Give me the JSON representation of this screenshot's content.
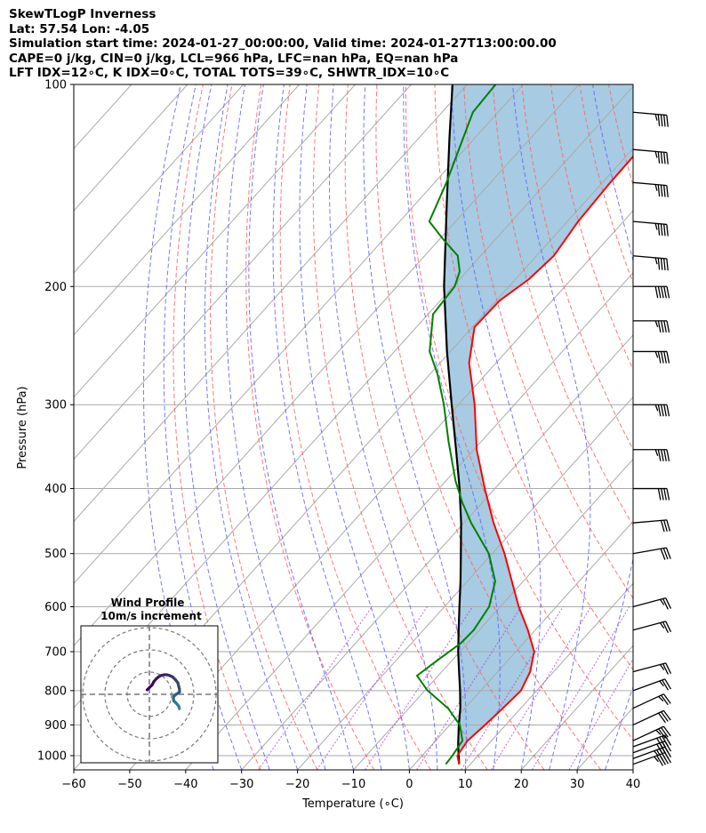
{
  "header": {
    "line1": "SkewTLogP Inverness",
    "line2": "Lat: 57.54   Lon: -4.05",
    "line3": "Simulation start time: 2024-01-27_00:00:00, Valid time: 2024-01-27T13:00:00.00",
    "line4": "CAPE=0 j/kg, CIN=0 j/kg, LCL=966 hPa, LFC=nan hPa, EQ=nan hPa",
    "line5": "LFT IDX=12∘C, K IDX=0∘C, TOTAL TOTS=39∘C, SHWTR_IDX=10∘C"
  },
  "colors": {
    "temperature": "#ff0000",
    "dewpoint": "#008000",
    "parcel": "#000000",
    "shading": "#a2c8e0",
    "dry_adiabat": "#ff6666",
    "moist_adiabat": "#6666ff",
    "mixing_ratio": "#aa44cc",
    "isotherm": "#aaaaaa"
  },
  "chart_data": {
    "type": "line",
    "skew_t": true,
    "xlabel": "Temperature (∘C)",
    "ylabel": "Pressure (hPa)",
    "xlim": [
      -60,
      40
    ],
    "ylim": [
      1050,
      100
    ],
    "y_scale": "log",
    "x_ticks": [
      "−60",
      "−50",
      "−40",
      "−30",
      "−20",
      "−10",
      "0",
      "10",
      "20",
      "30",
      "40"
    ],
    "y_ticks": [
      "1000",
      "900",
      "800",
      "700",
      "600",
      "500",
      "400",
      "300",
      "200",
      "100"
    ],
    "grid": true,
    "temperature_profile": [
      {
        "p": 1030,
        "t": 8
      },
      {
        "p": 1000,
        "t": 6.3
      },
      {
        "p": 950,
        "t": 5.7
      },
      {
        "p": 900,
        "t": 6.3
      },
      {
        "p": 850,
        "t": 6.8
      },
      {
        "p": 800,
        "t": 7.2
      },
      {
        "p": 750,
        "t": 5.8
      },
      {
        "p": 700,
        "t": 3.3
      },
      {
        "p": 650,
        "t": -1.3
      },
      {
        "p": 600,
        "t": -6.7
      },
      {
        "p": 550,
        "t": -12.0
      },
      {
        "p": 500,
        "t": -17.8
      },
      {
        "p": 450,
        "t": -24.7
      },
      {
        "p": 400,
        "t": -31.8
      },
      {
        "p": 350,
        "t": -39.5
      },
      {
        "p": 300,
        "t": -47.1
      },
      {
        "p": 260,
        "t": -54.8
      },
      {
        "p": 230,
        "t": -59.6
      },
      {
        "p": 210,
        "t": -59.4
      },
      {
        "p": 195,
        "t": -57.6
      },
      {
        "p": 180,
        "t": -56.9
      },
      {
        "p": 160,
        "t": -58.1
      },
      {
        "p": 140,
        "t": -58.6
      },
      {
        "p": 120,
        "t": -58.8
      },
      {
        "p": 100,
        "t": -60.4
      }
    ],
    "dewpoint_profile": [
      {
        "p": 1030,
        "t": 5.6
      },
      {
        "p": 1000,
        "t": 5.4
      },
      {
        "p": 950,
        "t": 4.8
      },
      {
        "p": 900,
        "t": 1.8
      },
      {
        "p": 850,
        "t": -3.0
      },
      {
        "p": 800,
        "t": -9.5
      },
      {
        "p": 760,
        "t": -13.8
      },
      {
        "p": 720,
        "t": -12.6
      },
      {
        "p": 680,
        "t": -11.2
      },
      {
        "p": 650,
        "t": -11.0
      },
      {
        "p": 600,
        "t": -12.0
      },
      {
        "p": 550,
        "t": -15.0
      },
      {
        "p": 500,
        "t": -20.6
      },
      {
        "p": 450,
        "t": -28.7
      },
      {
        "p": 420,
        "t": -33.5
      },
      {
        "p": 390,
        "t": -38.2
      },
      {
        "p": 340,
        "t": -45.9
      },
      {
        "p": 300,
        "t": -52.6
      },
      {
        "p": 270,
        "t": -58.7
      },
      {
        "p": 250,
        "t": -63.7
      },
      {
        "p": 220,
        "t": -69.1
      },
      {
        "p": 200,
        "t": -69.7
      },
      {
        "p": 190,
        "t": -71.2
      },
      {
        "p": 180,
        "t": -74.1
      },
      {
        "p": 170,
        "t": -79.4
      },
      {
        "p": 160,
        "t": -84.7
      },
      {
        "p": 140,
        "t": -87.9
      },
      {
        "p": 110,
        "t": -94.5
      },
      {
        "p": 100,
        "t": -94.9
      }
    ],
    "parcel_profile": [
      {
        "p": 1030,
        "t": 8
      },
      {
        "p": 966,
        "t": 4.8
      },
      {
        "p": 900,
        "t": 1.6
      },
      {
        "p": 850,
        "t": -0.8
      },
      {
        "p": 800,
        "t": -3.7
      },
      {
        "p": 750,
        "t": -6.9
      },
      {
        "p": 700,
        "t": -10.3
      },
      {
        "p": 650,
        "t": -13.7
      },
      {
        "p": 600,
        "t": -17.3
      },
      {
        "p": 550,
        "t": -21.2
      },
      {
        "p": 500,
        "t": -25.6
      },
      {
        "p": 450,
        "t": -30.5
      },
      {
        "p": 400,
        "t": -36.3
      },
      {
        "p": 350,
        "t": -43.2
      },
      {
        "p": 300,
        "t": -51.2
      },
      {
        "p": 250,
        "t": -60.6
      },
      {
        "p": 200,
        "t": -71.6
      },
      {
        "p": 150,
        "t": -84.6
      },
      {
        "p": 120,
        "t": -94.6
      },
      {
        "p": 100,
        "t": -102.6
      }
    ],
    "wind_barbs": [
      {
        "p": 1030,
        "speed_kt": 45,
        "dir": 250
      },
      {
        "p": 1010,
        "speed_kt": 45,
        "dir": 250
      },
      {
        "p": 990,
        "speed_kt": 40,
        "dir": 250
      },
      {
        "p": 970,
        "speed_kt": 40,
        "dir": 250
      },
      {
        "p": 950,
        "speed_kt": 35,
        "dir": 245
      },
      {
        "p": 900,
        "speed_kt": 30,
        "dir": 245
      },
      {
        "p": 850,
        "speed_kt": 25,
        "dir": 245
      },
      {
        "p": 800,
        "speed_kt": 25,
        "dir": 250
      },
      {
        "p": 750,
        "speed_kt": 25,
        "dir": 255
      },
      {
        "p": 650,
        "speed_kt": 25,
        "dir": 255
      },
      {
        "p": 600,
        "speed_kt": 25,
        "dir": 255
      },
      {
        "p": 500,
        "speed_kt": 30,
        "dir": 260
      },
      {
        "p": 450,
        "speed_kt": 30,
        "dir": 265
      },
      {
        "p": 400,
        "speed_kt": 40,
        "dir": 270
      },
      {
        "p": 350,
        "speed_kt": 45,
        "dir": 270
      },
      {
        "p": 300,
        "speed_kt": 45,
        "dir": 270
      },
      {
        "p": 250,
        "speed_kt": 45,
        "dir": 270
      },
      {
        "p": 225,
        "speed_kt": 45,
        "dir": 270
      },
      {
        "p": 200,
        "speed_kt": 50,
        "dir": 270
      },
      {
        "p": 180,
        "speed_kt": 45,
        "dir": 275
      },
      {
        "p": 160,
        "speed_kt": 45,
        "dir": 275
      },
      {
        "p": 140,
        "speed_kt": 45,
        "dir": 275
      },
      {
        "p": 125,
        "speed_kt": 45,
        "dir": 275
      },
      {
        "p": 110,
        "speed_kt": 45,
        "dir": 275
      }
    ],
    "hodograph": {
      "title": "Wind Profile",
      "subtitle": "10m/s increment",
      "ring_increment_ms": 10,
      "uv": [
        [
          13.5,
          6.5
        ],
        [
          13.2,
          5.3
        ],
        [
          12.6,
          4.6
        ],
        [
          11.9,
          3.8
        ],
        [
          11.0,
          3.0
        ],
        [
          10.8,
          2.0
        ],
        [
          11.0,
          0.9
        ],
        [
          12.0,
          0.0
        ],
        [
          13.0,
          -0.6
        ],
        [
          13.6,
          -1.1
        ],
        [
          13.5,
          -2.4
        ],
        [
          13.2,
          -3.6
        ],
        [
          12.8,
          -5.2
        ],
        [
          11.7,
          -6.6
        ],
        [
          10.5,
          -7.8
        ],
        [
          9.0,
          -8.5
        ],
        [
          7.8,
          -8.8
        ],
        [
          6.6,
          -8.8
        ],
        [
          5.3,
          -8.5
        ],
        [
          4.2,
          -7.9
        ],
        [
          3.1,
          -7.0
        ],
        [
          2.0,
          -5.7
        ],
        [
          1.2,
          -4.2
        ],
        [
          -1.0,
          -2.0
        ]
      ]
    }
  }
}
